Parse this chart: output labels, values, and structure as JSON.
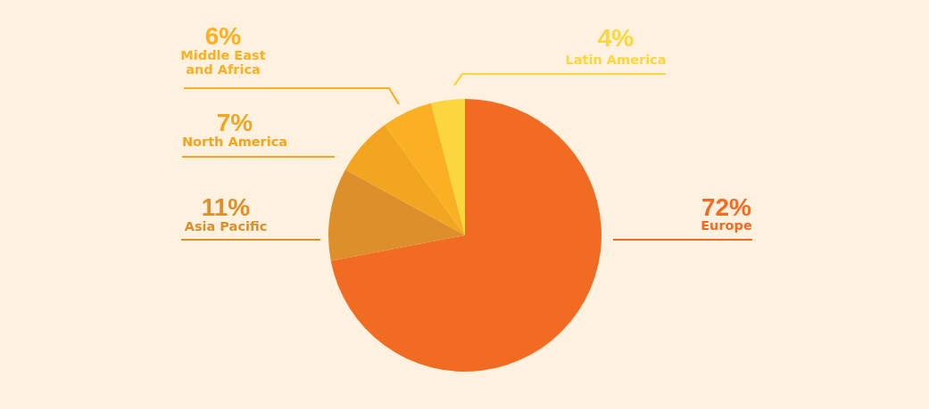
{
  "chart_data": {
    "type": "pie",
    "categories": [
      "Europe",
      "Asia Pacific",
      "North America",
      "Middle East and Africa",
      "Latin America"
    ],
    "values": [
      72,
      11,
      7,
      6,
      4
    ],
    "colors": [
      "#f26b22",
      "#dc8f2a",
      "#f2a51f",
      "#fbb023",
      "#fbd63e"
    ],
    "value_labels": [
      "72%",
      "11%",
      "7%",
      "6%",
      "4%"
    ]
  }
}
